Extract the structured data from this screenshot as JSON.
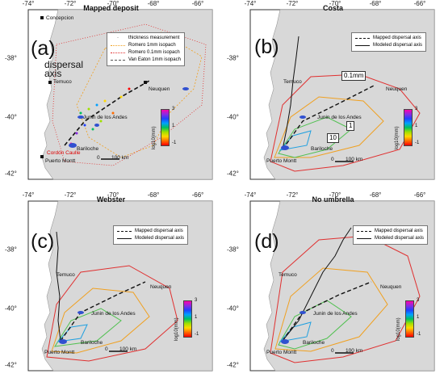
{
  "ticks": {
    "lon": [
      "-74°",
      "-72°",
      "-70°",
      "-68°",
      "-66°"
    ],
    "lat": [
      "-38°",
      "-40°",
      "-42°"
    ]
  },
  "panels": [
    {
      "title": "Mapped deposit",
      "label": "(a)",
      "legend": [
        "thickness measurement",
        "Romero 1mm isopach",
        "Romero 0.1mm isopach",
        "Van Eaton 1mm isopach"
      ]
    },
    {
      "title": "Costa",
      "label": "(b)",
      "legend": [
        "Mapped dispersal axis",
        "Modeled dispersal axis"
      ]
    },
    {
      "title": "Webster",
      "label": "(c)",
      "legend": [
        "Mapped dispersal axis",
        "Modeled dispersal axis"
      ]
    },
    {
      "title": "No umbrella",
      "label": "(d)",
      "legend": [
        "Mapped dispersal axis",
        "Modeled dispersal axis"
      ]
    }
  ],
  "cities": {
    "concepcion": "Concepcion",
    "temuco": "Temuco",
    "neuquen": "Neuquen",
    "junin": "Junin de los Andes",
    "bariloche": "Bariloche",
    "puerto_montt": "Puerto Montt",
    "cordon": "Cordón Caulle"
  },
  "scale_bar": {
    "zero": "0",
    "distance": "100 km"
  },
  "colorbar": {
    "label": "log10(mm)",
    "max": "3",
    "mid": "1",
    "min": "-1"
  },
  "annotations": {
    "dispersal_axis": "dispersal\naxis",
    "iso_01": "0.1mm",
    "iso_10": "10",
    "iso_1": "1"
  },
  "colors": {
    "land": "#d8d8d8",
    "ocean": "#ffffff",
    "lakes": "#3050d0",
    "mapped_axis": "#111111",
    "isopach_outer": "#e03030",
    "isopach_mid": "#f0a020",
    "isopach_inner": "#50c050",
    "isopach_core": "#20a0e0"
  }
}
